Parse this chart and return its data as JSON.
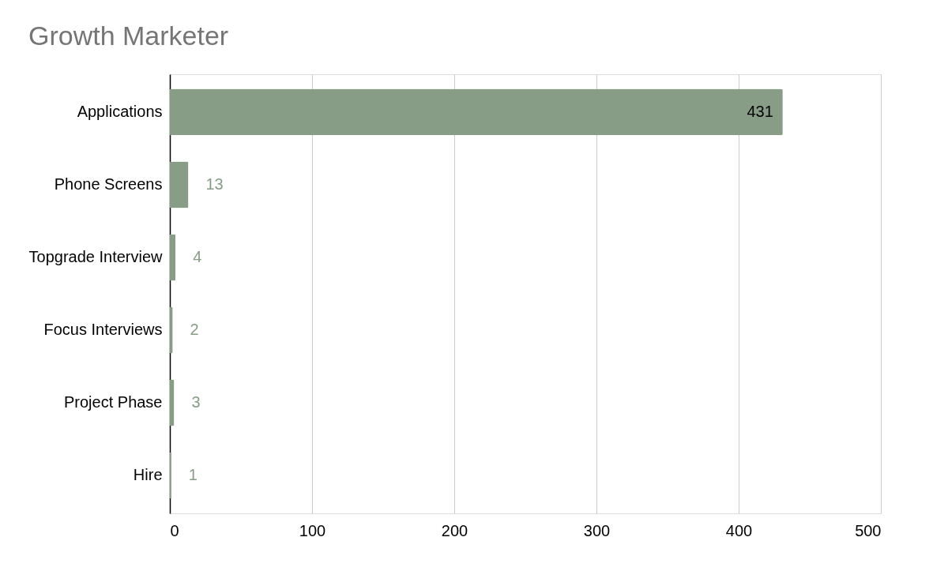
{
  "chart_data": {
    "type": "bar",
    "orientation": "horizontal",
    "title": "Growth Marketer",
    "categories": [
      "Applications",
      "Phone Screens",
      "Topgrade Interview",
      "Focus Interviews",
      "Project Phase",
      "Hire"
    ],
    "values": [
      431,
      13,
      4,
      2,
      3,
      1
    ],
    "color": "#879d86",
    "xlim": [
      0,
      500
    ],
    "xticks": [
      0,
      100,
      200,
      300,
      400,
      500
    ],
    "grid": "x",
    "data_labels": true
  }
}
